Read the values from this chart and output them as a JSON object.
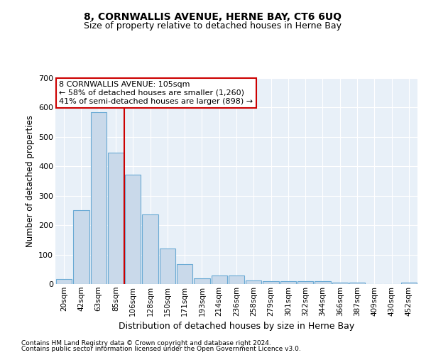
{
  "title1": "8, CORNWALLIS AVENUE, HERNE BAY, CT6 6UQ",
  "title2": "Size of property relative to detached houses in Herne Bay",
  "xlabel": "Distribution of detached houses by size in Herne Bay",
  "ylabel": "Number of detached properties",
  "categories": [
    "20sqm",
    "42sqm",
    "63sqm",
    "85sqm",
    "106sqm",
    "128sqm",
    "150sqm",
    "171sqm",
    "193sqm",
    "214sqm",
    "236sqm",
    "258sqm",
    "279sqm",
    "301sqm",
    "322sqm",
    "344sqm",
    "366sqm",
    "387sqm",
    "409sqm",
    "430sqm",
    "452sqm"
  ],
  "values": [
    18,
    250,
    585,
    447,
    372,
    237,
    120,
    67,
    20,
    30,
    30,
    13,
    10,
    10,
    9,
    9,
    4,
    4,
    1,
    1,
    6
  ],
  "bar_color": "#c9d9ea",
  "bar_edge_color": "#6aaad4",
  "vline_color": "#cc0000",
  "annotation_text": "8 CORNWALLIS AVENUE: 105sqm\n← 58% of detached houses are smaller (1,260)\n41% of semi-detached houses are larger (898) →",
  "annotation_box_color": "#ffffff",
  "annotation_box_edge": "#cc0000",
  "ylim": [
    0,
    700
  ],
  "yticks": [
    0,
    100,
    200,
    300,
    400,
    500,
    600,
    700
  ],
  "background_color": "#e8f0f8",
  "grid_color": "#ffffff",
  "footer1": "Contains HM Land Registry data © Crown copyright and database right 2024.",
  "footer2": "Contains public sector information licensed under the Open Government Licence v3.0."
}
